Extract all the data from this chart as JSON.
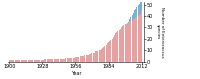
{
  "title": "",
  "xlabel": "Year",
  "ylabel": "Number of Enterococcus\nspecies",
  "xlim": [
    1899,
    2014
  ],
  "ylim": [
    0,
    52
  ],
  "yticks": [
    0,
    10,
    20,
    30,
    40,
    50
  ],
  "xticks": [
    1900,
    1928,
    1956,
    1984,
    2012
  ],
  "bar_width": 0.85,
  "red_color": "#e8a0a0",
  "blue_color": "#7bafd4",
  "background": "#ffffff",
  "years": [
    1900,
    1901,
    1902,
    1903,
    1904,
    1905,
    1906,
    1907,
    1908,
    1909,
    1910,
    1911,
    1912,
    1913,
    1914,
    1915,
    1916,
    1917,
    1918,
    1919,
    1920,
    1921,
    1922,
    1923,
    1924,
    1925,
    1926,
    1927,
    1928,
    1929,
    1930,
    1931,
    1932,
    1933,
    1934,
    1935,
    1936,
    1937,
    1938,
    1939,
    1940,
    1941,
    1942,
    1943,
    1944,
    1945,
    1946,
    1947,
    1948,
    1949,
    1950,
    1951,
    1952,
    1953,
    1954,
    1955,
    1956,
    1957,
    1958,
    1959,
    1960,
    1961,
    1962,
    1963,
    1964,
    1965,
    1966,
    1967,
    1968,
    1969,
    1970,
    1971,
    1972,
    1973,
    1974,
    1975,
    1976,
    1977,
    1978,
    1979,
    1980,
    1981,
    1982,
    1983,
    1984,
    1985,
    1986,
    1987,
    1988,
    1989,
    1990,
    1991,
    1992,
    1993,
    1994,
    1995,
    1996,
    1997,
    1998,
    1999,
    2000,
    2001,
    2002,
    2003,
    2004,
    2005,
    2006,
    2007,
    2008,
    2009,
    2010,
    2011,
    2012
  ],
  "red_values": [
    1,
    1,
    1,
    1,
    1,
    1,
    1,
    1,
    1,
    1,
    1,
    1,
    1,
    1,
    1,
    1,
    1,
    1,
    1,
    1,
    1,
    1,
    1,
    1,
    1,
    1,
    1,
    1,
    1,
    1,
    2,
    2,
    2,
    2,
    2,
    2,
    2,
    2,
    2,
    2,
    2,
    2,
    2,
    2,
    2,
    2,
    2,
    2,
    3,
    3,
    3,
    3,
    3,
    3,
    3,
    3,
    4,
    4,
    4,
    4,
    5,
    5,
    5,
    5,
    6,
    6,
    6,
    6,
    7,
    7,
    8,
    8,
    8,
    9,
    9,
    9,
    10,
    10,
    11,
    12,
    13,
    14,
    15,
    16,
    17,
    18,
    19,
    20,
    22,
    23,
    25,
    26,
    27,
    28,
    29,
    30,
    31,
    32,
    33,
    33,
    34,
    34,
    35,
    36,
    36,
    37,
    38,
    38,
    39,
    40,
    41,
    42,
    44
  ],
  "blue_values": [
    0,
    0,
    0,
    0,
    0,
    0,
    0,
    0,
    0,
    0,
    0,
    0,
    0,
    0,
    0,
    0,
    0,
    0,
    0,
    0,
    0,
    0,
    0,
    0,
    0,
    0,
    0,
    0,
    0,
    0,
    0,
    0,
    0,
    0,
    0,
    0,
    0,
    0,
    0,
    0,
    0,
    0,
    0,
    0,
    0,
    0,
    0,
    0,
    0,
    0,
    0,
    0,
    0,
    0,
    0,
    0,
    0,
    0,
    0,
    0,
    0,
    0,
    0,
    0,
    0,
    0,
    0,
    0,
    0,
    0,
    0,
    0,
    0,
    0,
    0,
    0,
    0,
    0,
    0,
    0,
    0,
    0,
    0,
    0,
    0,
    0,
    0,
    0,
    0,
    0,
    0,
    0,
    0,
    0,
    0,
    0,
    0,
    0,
    0,
    0,
    0,
    1,
    2,
    3,
    5,
    6,
    7,
    8,
    9,
    10,
    10,
    11,
    14
  ]
}
